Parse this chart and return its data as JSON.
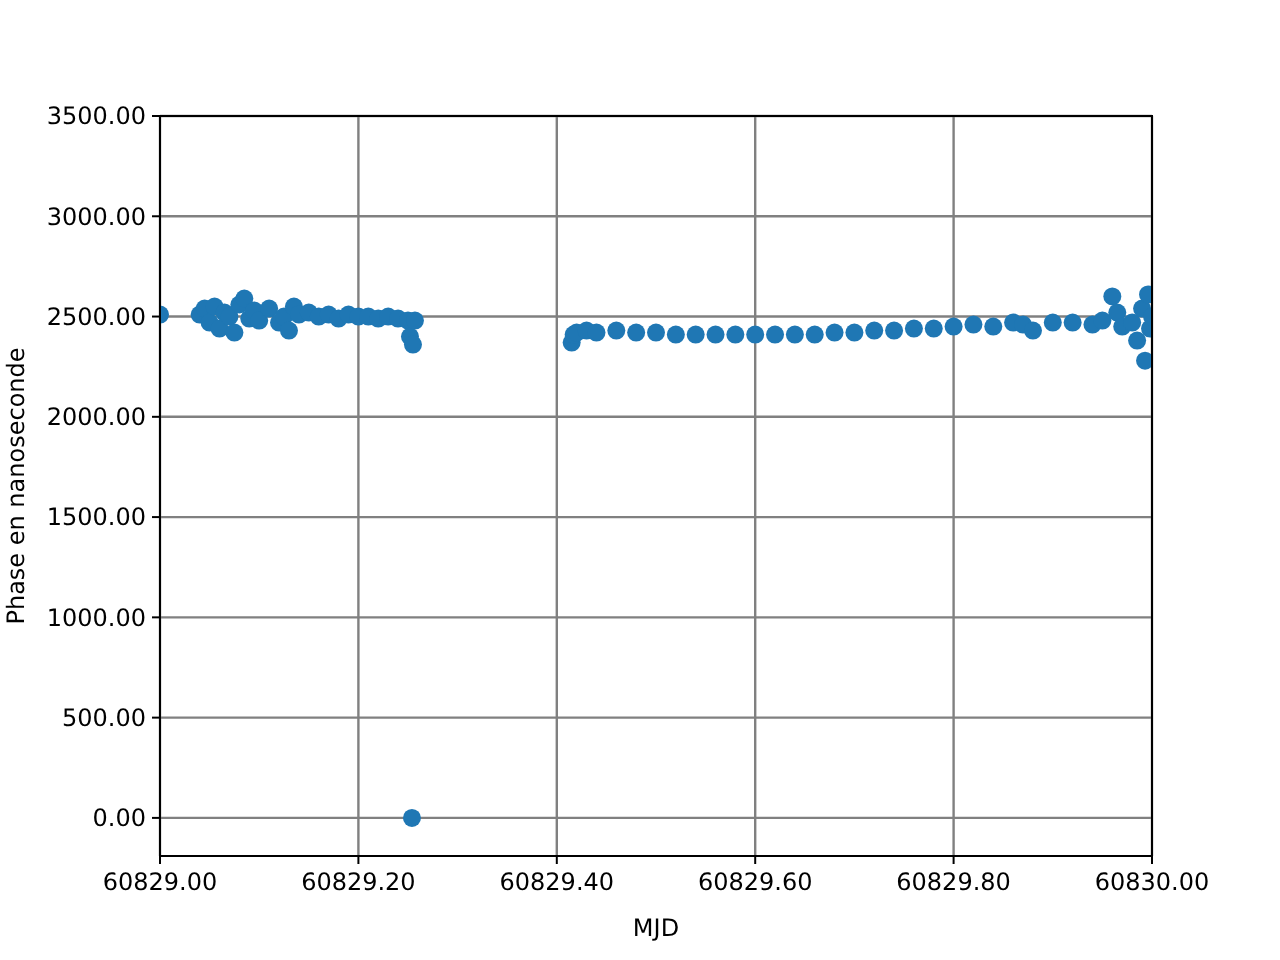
{
  "chart_data": {
    "type": "scatter",
    "xlabel": "MJD",
    "ylabel": "Phase en nanoseconde",
    "xlim": [
      60829.0,
      60830.0
    ],
    "ylim": [
      -190,
      3500
    ],
    "xticks": [
      {
        "value": 60829.0,
        "label": "60829.00"
      },
      {
        "value": 60829.2,
        "label": "60829.20"
      },
      {
        "value": 60829.4,
        "label": "60829.40"
      },
      {
        "value": 60829.6,
        "label": "60829.60"
      },
      {
        "value": 60829.8,
        "label": "60829.80"
      },
      {
        "value": 60830.0,
        "label": "60830.00"
      }
    ],
    "yticks": [
      {
        "value": 0,
        "label": "0.00"
      },
      {
        "value": 500,
        "label": "500.00"
      },
      {
        "value": 1000,
        "label": "1000.00"
      },
      {
        "value": 1500,
        "label": "1500.00"
      },
      {
        "value": 2000,
        "label": "2000.00"
      },
      {
        "value": 2500,
        "label": "2500.00"
      },
      {
        "value": 3000,
        "label": "3000.00"
      },
      {
        "value": 3500,
        "label": "3500.00"
      }
    ],
    "grid": true,
    "marker": "circle",
    "series": [
      {
        "color": "#1f77b4",
        "x": [
          60829.0,
          60829.04,
          60829.045,
          60829.05,
          60829.055,
          60829.06,
          60829.065,
          60829.07,
          60829.075,
          60829.08,
          60829.085,
          60829.09,
          60829.095,
          60829.1,
          60829.11,
          60829.12,
          60829.125,
          60829.13,
          60829.135,
          60829.14,
          60829.15,
          60829.16,
          60829.17,
          60829.18,
          60829.19,
          60829.2,
          60829.21,
          60829.22,
          60829.23,
          60829.24,
          60829.25,
          60829.252,
          60829.255,
          60829.257,
          60829.254,
          60829.415,
          60829.417,
          60829.42,
          60829.43,
          60829.44,
          60829.46,
          60829.48,
          60829.5,
          60829.52,
          60829.54,
          60829.56,
          60829.58,
          60829.6,
          60829.62,
          60829.64,
          60829.66,
          60829.68,
          60829.7,
          60829.72,
          60829.74,
          60829.76,
          60829.78,
          60829.8,
          60829.82,
          60829.84,
          60829.86,
          60829.87,
          60829.88,
          60829.9,
          60829.92,
          60829.94,
          60829.95,
          60829.96,
          60829.965,
          60829.97,
          60829.98,
          60829.985,
          60829.99,
          60829.993,
          60829.996,
          60829.998,
          60830.0
        ],
        "values": [
          2510,
          2510,
          2540,
          2470,
          2550,
          2440,
          2520,
          2500,
          2420,
          2560,
          2590,
          2490,
          2530,
          2480,
          2540,
          2470,
          2500,
          2430,
          2550,
          2510,
          2520,
          2500,
          2510,
          2490,
          2510,
          2500,
          2500,
          2490,
          2500,
          2490,
          2480,
          2400,
          2360,
          2480,
          0,
          2370,
          2410,
          2420,
          2430,
          2420,
          2430,
          2420,
          2420,
          2410,
          2410,
          2410,
          2410,
          2410,
          2410,
          2410,
          2410,
          2420,
          2420,
          2430,
          2430,
          2440,
          2440,
          2450,
          2460,
          2450,
          2470,
          2460,
          2430,
          2470,
          2470,
          2460,
          2480,
          2600,
          2520,
          2450,
          2470,
          2380,
          2540,
          2280,
          2610,
          2440,
          2500
        ]
      }
    ]
  }
}
